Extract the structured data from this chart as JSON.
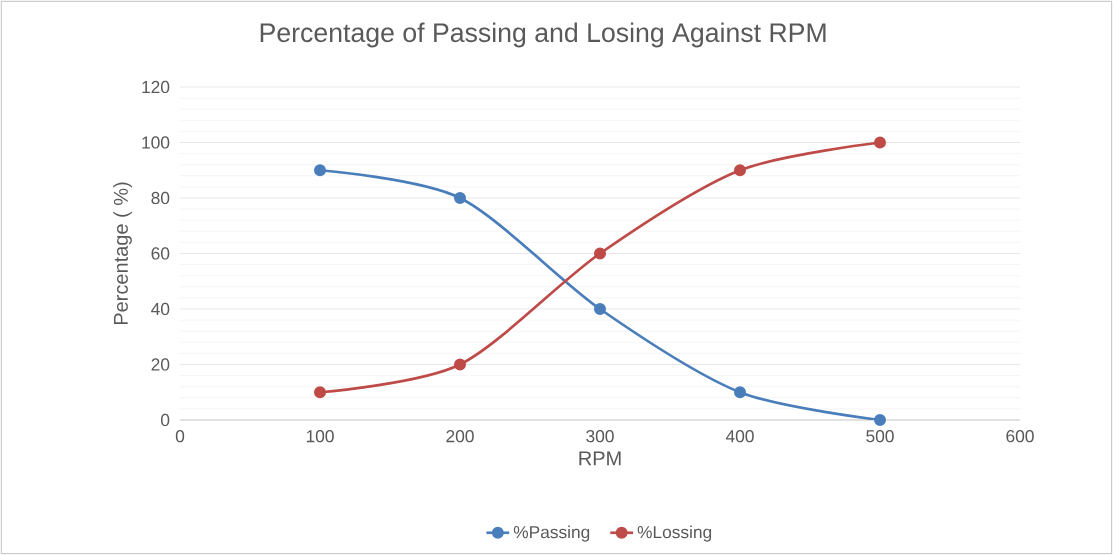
{
  "chart_data": {
    "type": "line",
    "title": "Percentage of Passing and Losing Against RPM",
    "xlabel": "RPM",
    "ylabel": "Percentage ( %)",
    "x": [
      100,
      200,
      300,
      400,
      500
    ],
    "series": [
      {
        "name": "%Passing",
        "color": "#4a7ebb",
        "values": [
          90,
          80,
          40,
          10,
          0
        ]
      },
      {
        "name": "%Lossing",
        "color": "#be4b48",
        "values": [
          10,
          20,
          60,
          90,
          100
        ]
      }
    ],
    "xlim": [
      0,
      600
    ],
    "xticks": [
      0,
      100,
      200,
      300,
      400,
      500,
      600
    ],
    "ylim": [
      0,
      120
    ],
    "yticks": [
      0,
      20,
      40,
      60,
      80,
      100,
      120
    ],
    "grid": "y",
    "legend": "bottom",
    "marker": "circle"
  }
}
